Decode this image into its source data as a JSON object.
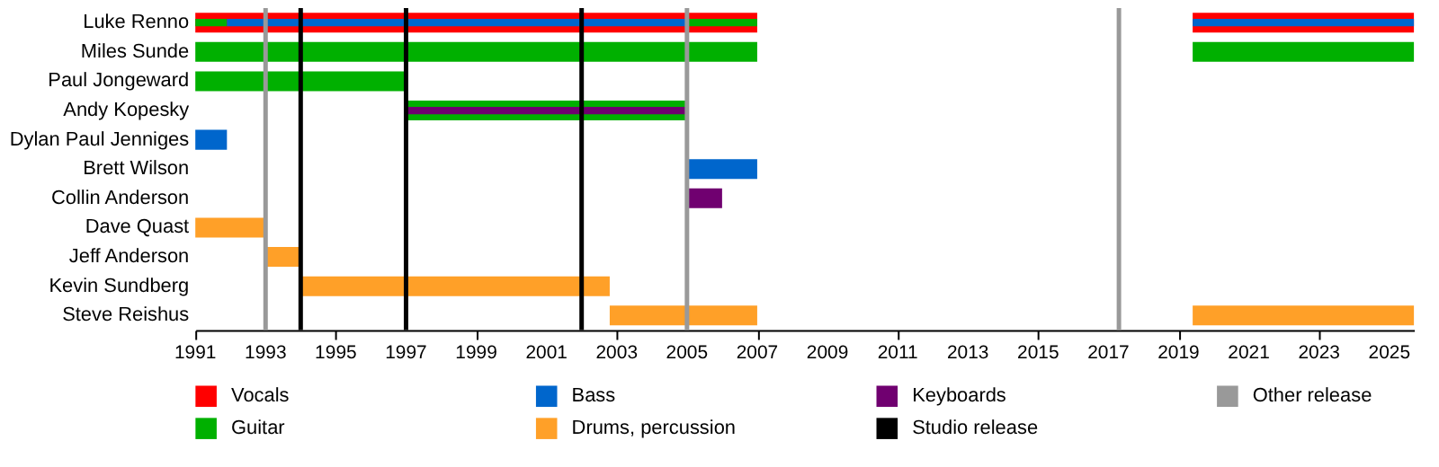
{
  "chart_data": {
    "type": "bar",
    "orientation": "horizontal",
    "legend": "bottom",
    "grid": false,
    "categories": [
      "Luke Renno",
      "Miles Sunde",
      "Paul Jongeward",
      "Andy Kopesky",
      "Dylan Paul Jenniges",
      "Brett Wilson",
      "Collin Anderson",
      "Dave Quast",
      "Jeff Anderson",
      "Kevin Sundberg",
      "Steve Reishus"
    ],
    "xlim": [
      1991,
      2025.7
    ],
    "xticks": [
      1991,
      1993,
      1995,
      1997,
      1999,
      2001,
      2003,
      2005,
      2007,
      2009,
      2011,
      2013,
      2015,
      2017,
      2019,
      2021,
      2023,
      2025
    ],
    "series": [
      {
        "name": "Vocals",
        "color": "#ff0000",
        "base": [
          1991,
          null,
          null,
          null,
          null,
          null,
          null,
          null,
          null,
          null,
          null
        ],
        "values": [
          16,
          null,
          null,
          null,
          null,
          null,
          null,
          null,
          null,
          null,
          null
        ]
      },
      {
        "color": "#ff0000",
        "base": [
          2019.4,
          null,
          null,
          null,
          null,
          null,
          null,
          null,
          null,
          null,
          null
        ],
        "values": [
          6.3,
          null,
          null,
          null,
          null,
          null,
          null,
          null,
          null,
          null,
          null
        ]
      },
      {
        "name": "Guitar",
        "color": "#00b000",
        "base": [
          1991,
          1991,
          1991,
          1997,
          null,
          null,
          null,
          null,
          null,
          null,
          null
        ],
        "values": [
          0.9,
          16,
          6,
          8,
          null,
          null,
          null,
          null,
          null,
          null,
          null
        ]
      },
      {
        "color": "#00b000",
        "base": [
          2005,
          2019.4,
          null,
          null,
          null,
          null,
          null,
          null,
          null,
          null,
          null
        ],
        "values": [
          2,
          6.3,
          null,
          null,
          null,
          null,
          null,
          null,
          null,
          null,
          null
        ]
      },
      {
        "name": "Bass",
        "color": "#0066cc",
        "base": [
          1991.9,
          null,
          null,
          null,
          1991,
          2005,
          null,
          null,
          null,
          null,
          null
        ],
        "values": [
          13.1,
          null,
          null,
          null,
          0.9,
          2,
          null,
          null,
          null,
          null,
          null
        ]
      },
      {
        "color": "#0066cc",
        "base": [
          2019.4,
          null,
          null,
          null,
          null,
          null,
          null,
          null,
          null,
          null,
          null
        ],
        "values": [
          6.3,
          null,
          null,
          null,
          null,
          null,
          null,
          null,
          null,
          null,
          null
        ]
      },
      {
        "name": "Drums, percussion",
        "color": "#ffa028",
        "base": [
          null,
          null,
          null,
          null,
          null,
          null,
          null,
          1991,
          1993,
          1994,
          2002.8
        ],
        "values": [
          null,
          null,
          null,
          null,
          null,
          null,
          null,
          2,
          1,
          8.8,
          4.2
        ]
      },
      {
        "color": "#ffa028",
        "base": [
          null,
          null,
          null,
          null,
          null,
          null,
          null,
          null,
          null,
          null,
          2019.4
        ],
        "values": [
          null,
          null,
          null,
          null,
          null,
          null,
          null,
          null,
          null,
          null,
          6.3
        ]
      },
      {
        "name": "Keyboards",
        "color": "#700070",
        "base": [
          null,
          null,
          null,
          1997,
          null,
          null,
          2005,
          null,
          null,
          null,
          null
        ],
        "values": [
          null,
          null,
          null,
          8,
          null,
          null,
          1,
          null,
          null,
          null,
          null
        ]
      }
    ],
    "ref_lines": [
      {
        "axis": "x",
        "value": 1994,
        "label": "Studio release",
        "color": "#000000"
      },
      {
        "axis": "x",
        "value": 1997,
        "color": "#000000"
      },
      {
        "axis": "x",
        "value": 2002,
        "color": "#000000"
      },
      {
        "axis": "x",
        "value": 1993,
        "label": "Other release",
        "color": "#999999"
      },
      {
        "axis": "x",
        "value": 2005,
        "color": "#999999"
      },
      {
        "axis": "x",
        "value": 2017.3,
        "color": "#999999"
      }
    ]
  }
}
